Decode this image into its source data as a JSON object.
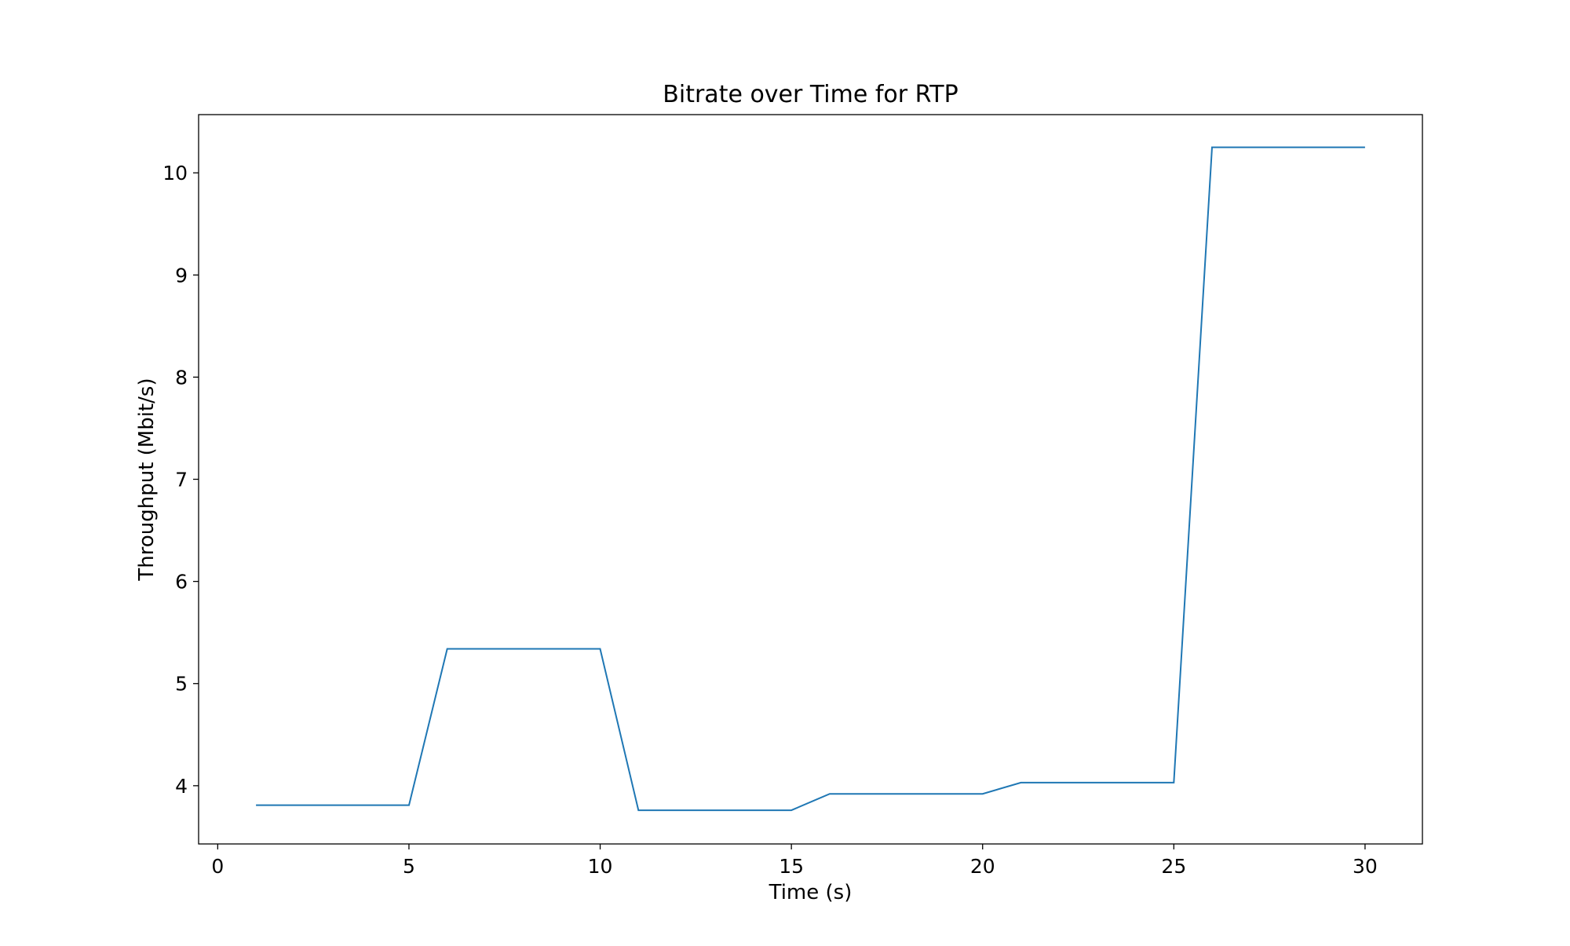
{
  "chart_data": {
    "type": "line",
    "title": "Bitrate over Time for RTP",
    "xlabel": "Time (s)",
    "ylabel": "Throughput (Mbit/s)",
    "xlim": [
      -0.5,
      31.5
    ],
    "ylim": [
      3.43,
      10.57
    ],
    "xticks": [
      0,
      5,
      10,
      15,
      20,
      25,
      30
    ],
    "yticks": [
      4,
      5,
      6,
      7,
      8,
      9,
      10
    ],
    "grid": false,
    "series": [
      {
        "color": "#1f77b4",
        "x": [
          1,
          2,
          3,
          4,
          5,
          6,
          7,
          8,
          9,
          10,
          11,
          12,
          13,
          14,
          15,
          16,
          17,
          18,
          19,
          20,
          21,
          22,
          23,
          24,
          25,
          26,
          27,
          28,
          29,
          30
        ],
        "y": [
          3.81,
          3.81,
          3.81,
          3.81,
          3.81,
          5.34,
          5.34,
          5.34,
          5.34,
          5.34,
          3.76,
          3.76,
          3.76,
          3.76,
          3.76,
          3.92,
          3.92,
          3.92,
          3.92,
          3.92,
          4.03,
          4.03,
          4.03,
          4.03,
          4.03,
          10.25,
          10.25,
          10.25,
          10.25,
          10.25
        ]
      }
    ]
  }
}
